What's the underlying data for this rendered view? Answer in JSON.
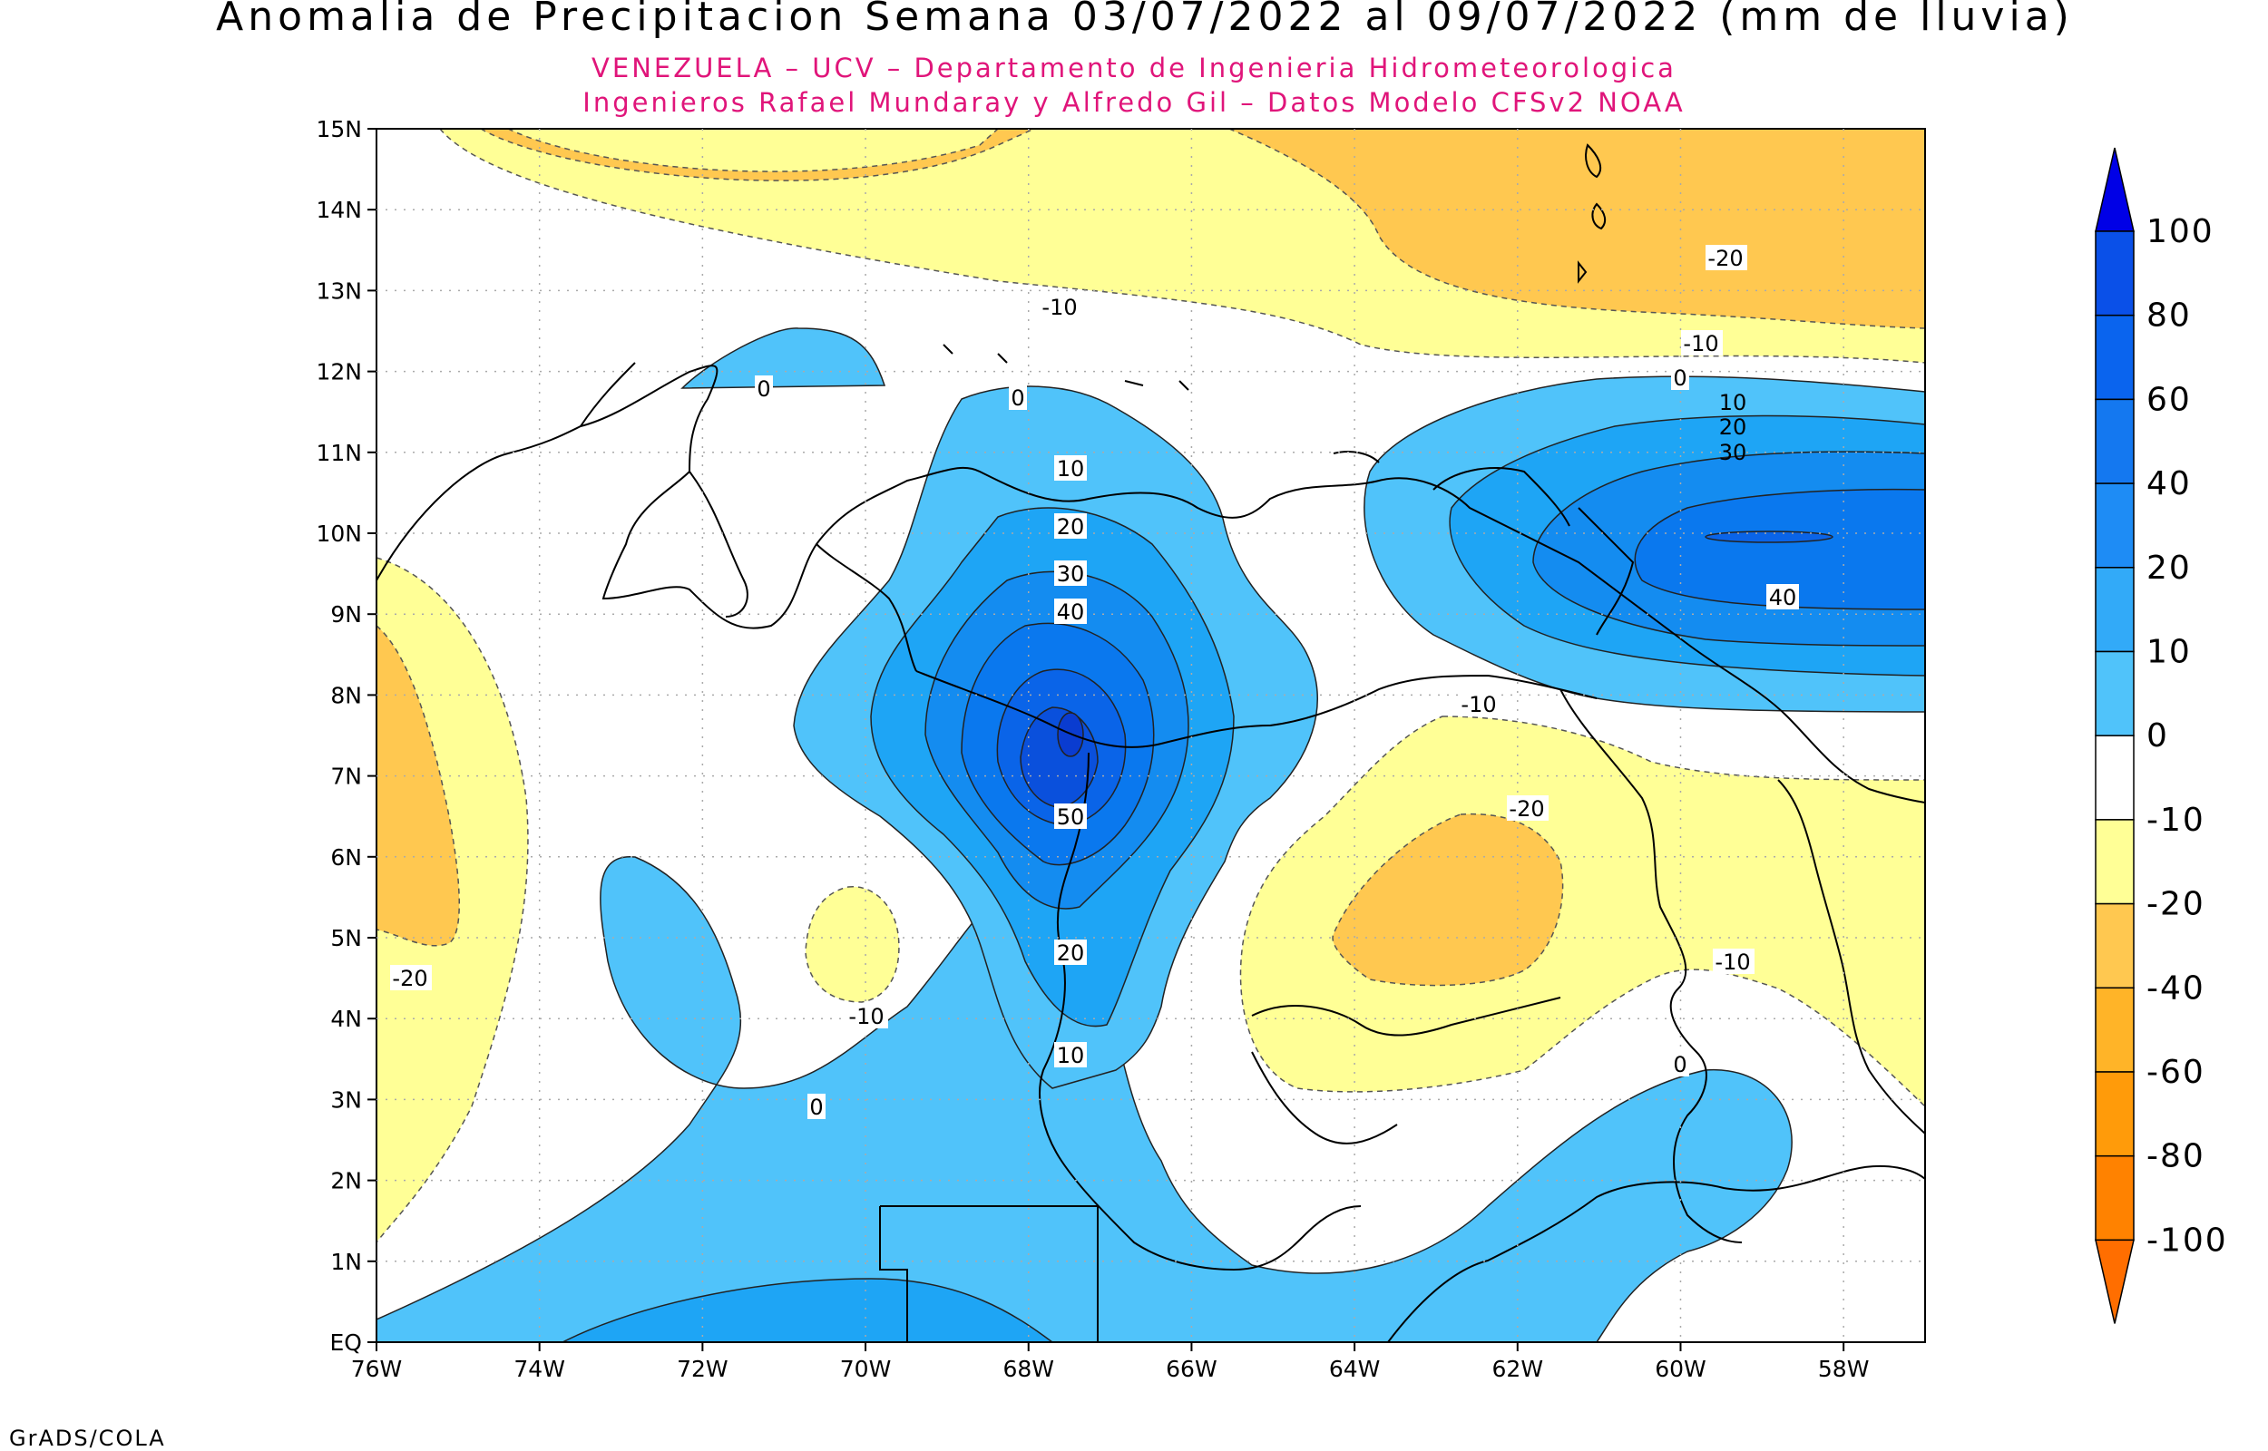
{
  "title": "Anomalia de Precipitacion Semana 03/07/2022 al 09/07/2022 (mm de lluvia)",
  "subtitle_line1": "VENEZUELA – UCV – Departamento de Ingenieria Hidrometeorologica",
  "subtitle_line2": "Ingenieros Rafael Mundaray y Alfredo Gil – Datos Modelo CFSv2 NOAA",
  "footer": "GrADS/COLA",
  "map": {
    "lat_ticks": [
      "15N",
      "14N",
      "13N",
      "12N",
      "11N",
      "10N",
      "9N",
      "8N",
      "7N",
      "6N",
      "5N",
      "4N",
      "3N",
      "2N",
      "1N",
      "EQ"
    ],
    "lon_ticks": [
      "76W",
      "74W",
      "72W",
      "70W",
      "68W",
      "66W",
      "64W",
      "62W",
      "60W",
      "58W"
    ],
    "contour_labels": {
      "neg20_top": "-20",
      "neg10_top": "-10",
      "neg10_ne": "-10",
      "zero_nw": "0",
      "zero_center": "0",
      "zero_ne": "0",
      "c10": "10",
      "c20": "20",
      "c30": "30",
      "c40": "40",
      "c50": "50",
      "c20_s": "20",
      "c10_s": "10",
      "ne10": "10",
      "ne20": "20",
      "ne30": "30",
      "ne40": "40",
      "neg10_e": "-10",
      "neg20_e": "-20",
      "neg10_se": "-10",
      "zero_se": "0",
      "neg20_w": "-20",
      "neg10_c": "-10",
      "zero_s": "0"
    }
  },
  "colorbar": {
    "labels": [
      "100",
      "80",
      "60",
      "40",
      "20",
      "10",
      "0",
      "-10",
      "-20",
      "-40",
      "-60",
      "-80",
      "-100"
    ],
    "colors": [
      "#0000e6",
      "#0a50e8",
      "#0a64ee",
      "#1478f0",
      "#1e8cf5",
      "#32aaf8",
      "#50c3fa",
      "#ffffff",
      "#ffff96",
      "#ffc850",
      "#ffb428",
      "#ff9b0a",
      "#ff8200",
      "#ff6e00"
    ]
  },
  "colors": {
    "land_line": "#000000",
    "blue_light": "#50c3fa",
    "blue_mid": "#1ea5f5",
    "blue_dark": "#0a82ee",
    "yellow": "#ffff96",
    "orange": "#ffc850"
  }
}
